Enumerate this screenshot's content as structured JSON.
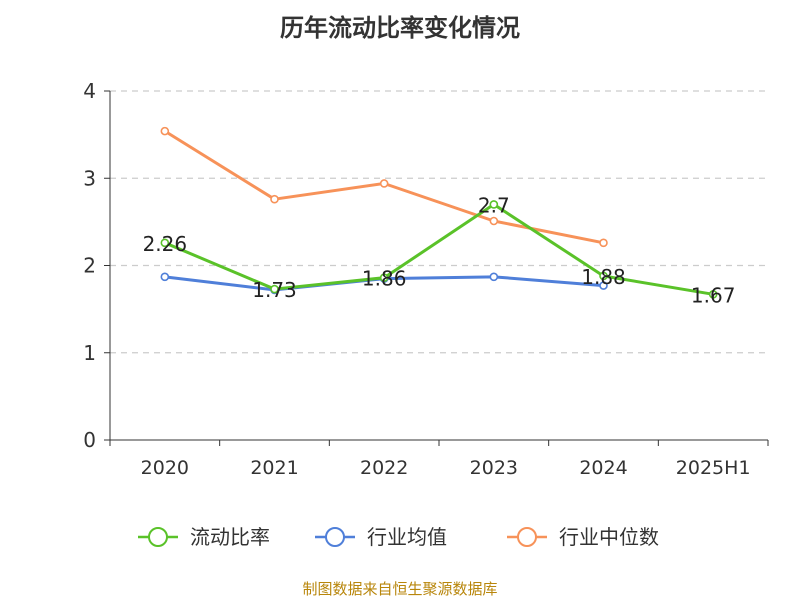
{
  "chart_data": {
    "type": "line",
    "title": "历年流动比率变化情况",
    "categories": [
      "2020",
      "2021",
      "2022",
      "2023",
      "2024",
      "2025H1"
    ],
    "ylim": [
      0,
      4
    ],
    "yticks": [
      "0",
      "1",
      "2",
      "3",
      "4"
    ],
    "grid": true,
    "legend_position": "bottom",
    "series": [
      {
        "name": "流动比率",
        "color": "#5ac229",
        "values": [
          2.26,
          1.73,
          1.86,
          2.7,
          1.88,
          1.67
        ],
        "labels": [
          "2.26",
          "1.73",
          "1.86",
          "2.7",
          "1.88",
          "1.67"
        ]
      },
      {
        "name": "行业均值",
        "color": "#4f7fd9",
        "values": [
          1.87,
          1.72,
          1.85,
          1.87,
          1.77,
          null
        ]
      },
      {
        "name": "行业中位数",
        "color": "#f79259",
        "values": [
          3.54,
          2.76,
          2.94,
          2.51,
          2.26,
          null
        ]
      }
    ]
  },
  "footer": {
    "source": "制图数据来自恒生聚源数据库"
  }
}
